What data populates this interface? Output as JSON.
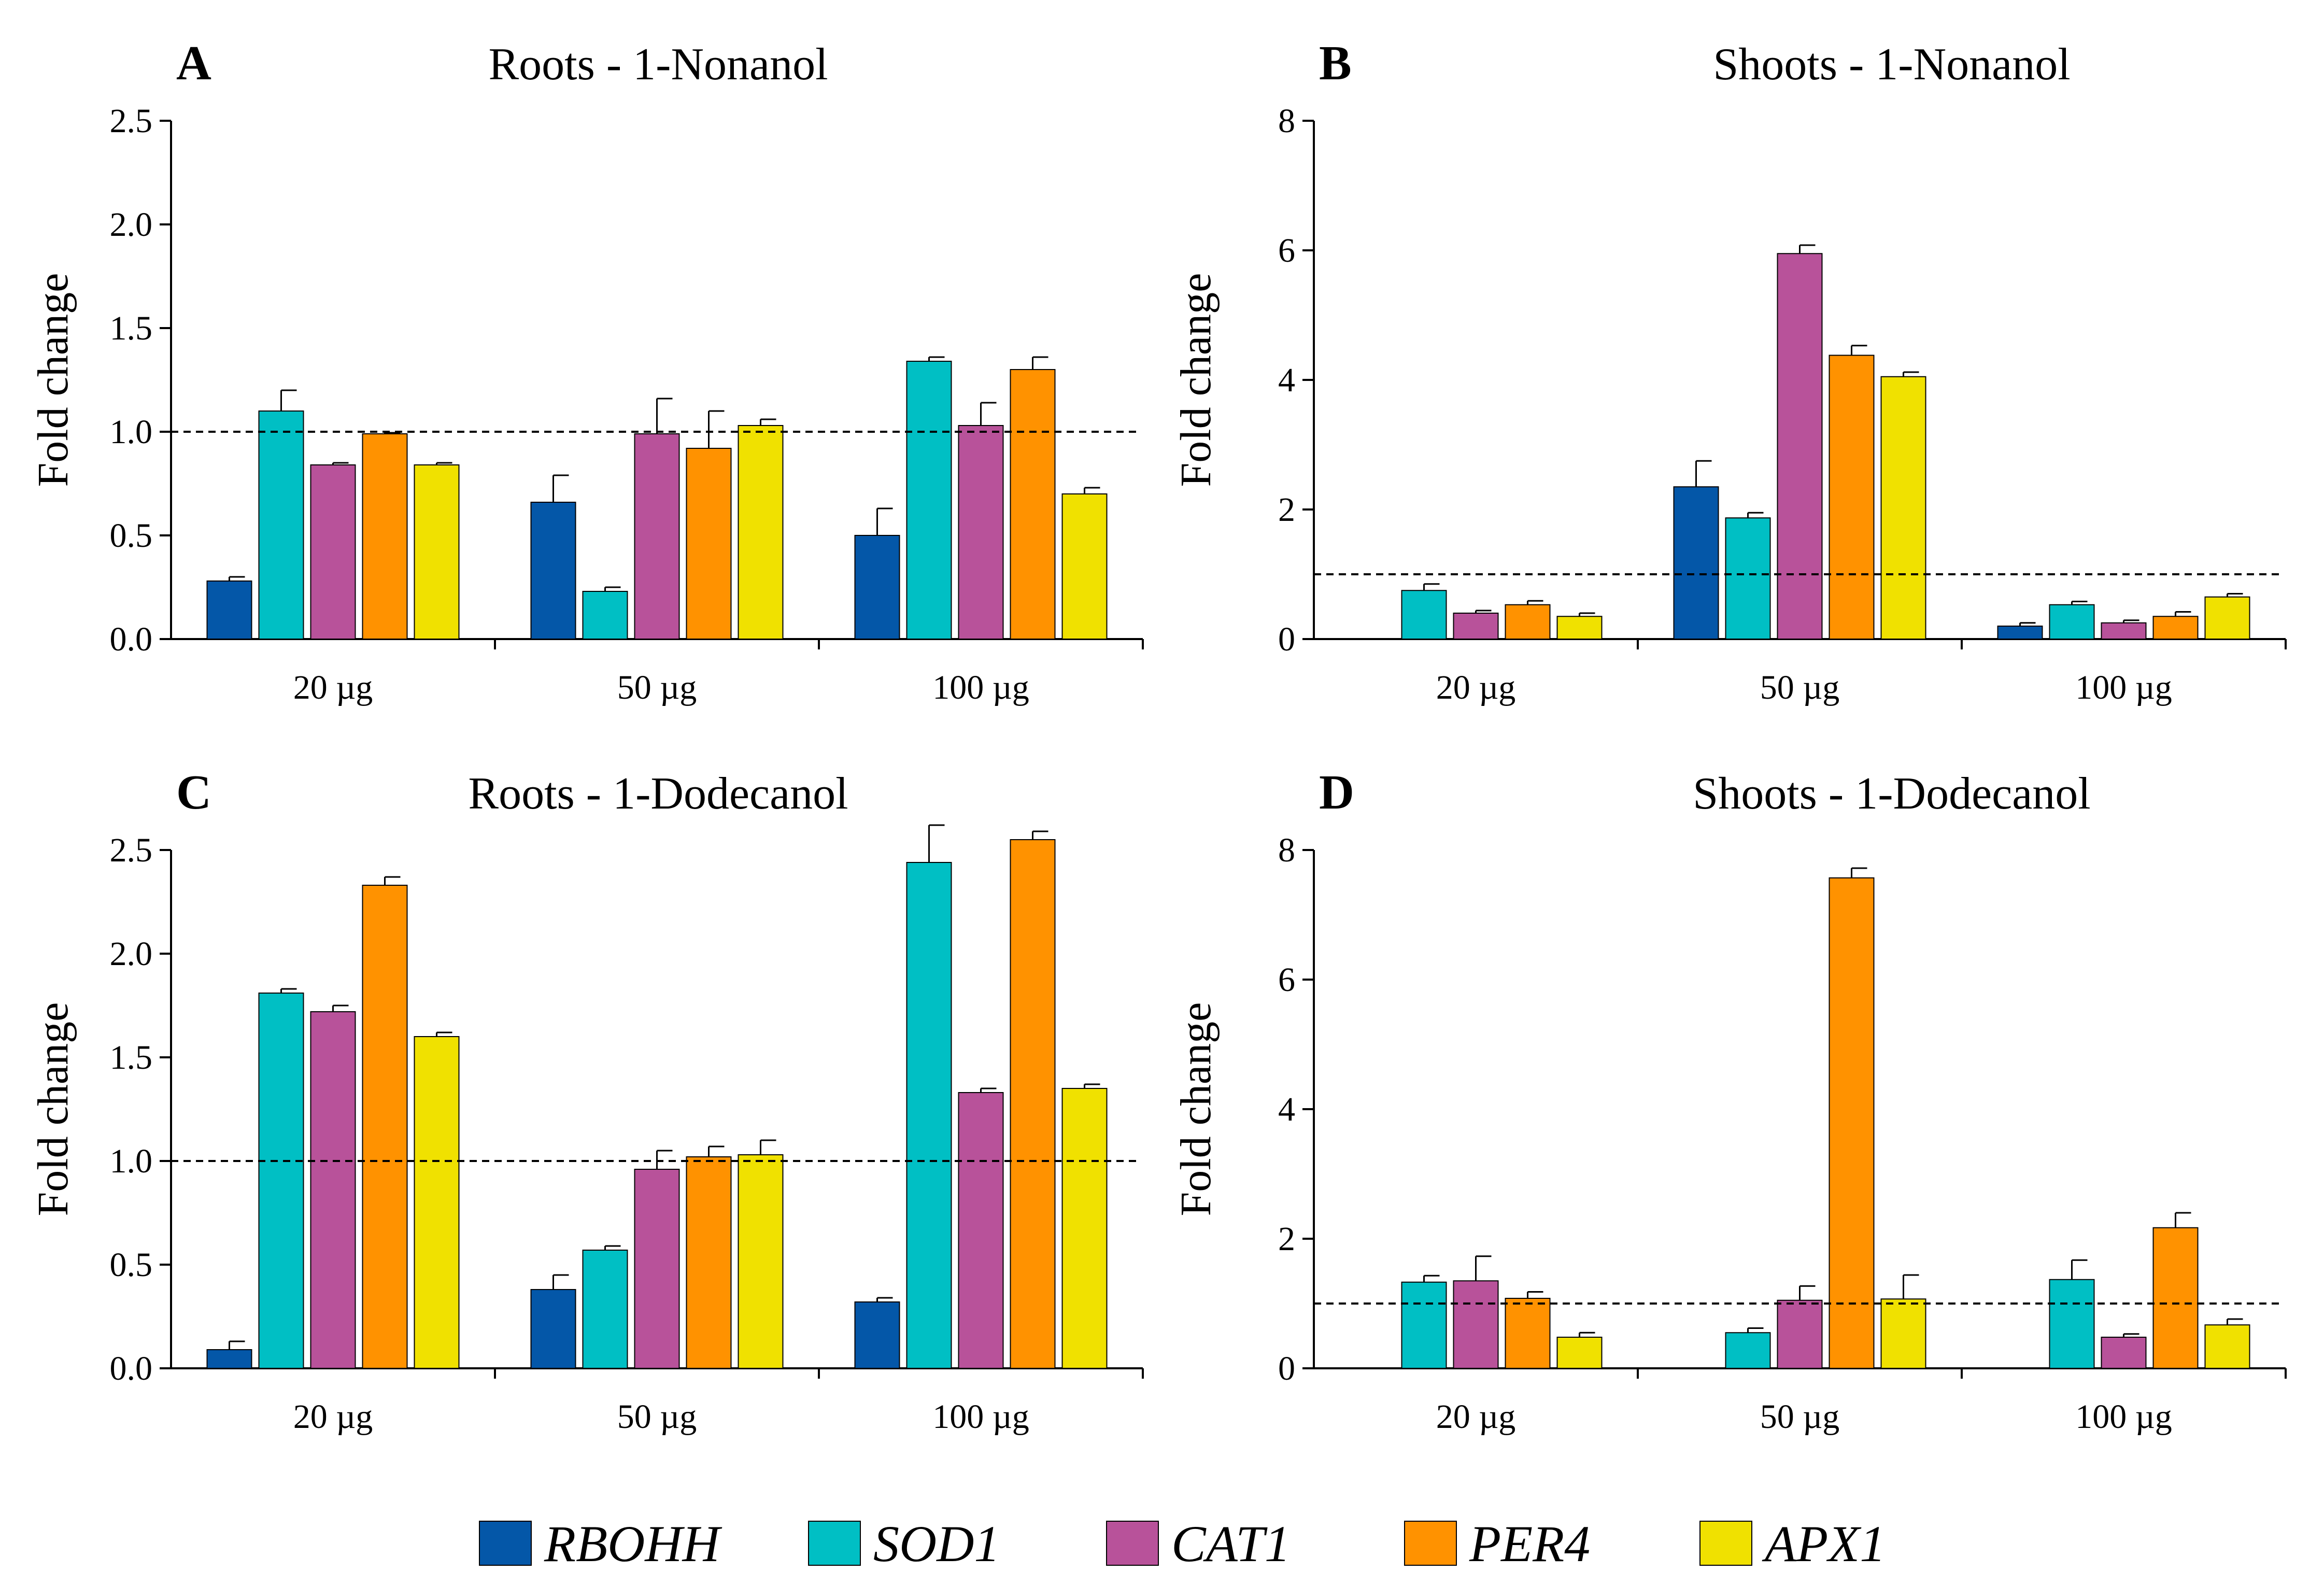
{
  "legend": [
    {
      "gene": "RBOHH",
      "color": "#0457a8"
    },
    {
      "gene": "SOD1",
      "color": "#00bfc4"
    },
    {
      "gene": "CAT1",
      "color": "#b8529a"
    },
    {
      "gene": "PER4",
      "color": "#ff9200"
    },
    {
      "gene": "APX1",
      "color": "#f0e100"
    }
  ],
  "chart_data": [
    {
      "type": "bar",
      "letter": "A",
      "title": "Roots - 1-Nonanol",
      "ylabel": "Fold change",
      "ylim": [
        0,
        2.5
      ],
      "yticks": [
        "0.0",
        "0.5",
        "1.0",
        "1.5",
        "2.0",
        "2.5"
      ],
      "reference_line": 1.0,
      "categories": [
        "20 µg",
        "50 µg",
        "100 µg"
      ],
      "series": [
        {
          "name": "RBOHH",
          "values": [
            0.28,
            0.66,
            0.5
          ],
          "errors": [
            0.02,
            0.13,
            0.13
          ]
        },
        {
          "name": "SOD1",
          "values": [
            1.1,
            0.23,
            1.34
          ],
          "errors": [
            0.1,
            0.02,
            0.02
          ]
        },
        {
          "name": "CAT1",
          "values": [
            0.84,
            0.99,
            1.03
          ],
          "errors": [
            0.01,
            0.17,
            0.11
          ]
        },
        {
          "name": "PER4",
          "values": [
            0.99,
            0.92,
            1.3
          ],
          "errors": [
            0.005,
            0.18,
            0.06
          ]
        },
        {
          "name": "APX1",
          "values": [
            0.84,
            1.03,
            0.7
          ],
          "errors": [
            0.01,
            0.03,
            0.03
          ]
        }
      ]
    },
    {
      "type": "bar",
      "letter": "B",
      "title": "Shoots - 1-Nonanol",
      "ylabel": "Fold change",
      "ylim": [
        0,
        8
      ],
      "yticks": [
        "0",
        "2",
        "4",
        "6",
        "8"
      ],
      "reference_line": 1.0,
      "categories": [
        "20 µg",
        "50 µg",
        "100 µg"
      ],
      "series": [
        {
          "name": "RBOHH",
          "values": [
            0.0,
            2.35,
            0.2
          ],
          "errors": [
            0.0,
            0.4,
            0.05
          ]
        },
        {
          "name": "SOD1",
          "values": [
            0.75,
            1.87,
            0.53
          ],
          "errors": [
            0.1,
            0.08,
            0.05
          ]
        },
        {
          "name": "CAT1",
          "values": [
            0.4,
            5.95,
            0.25
          ],
          "errors": [
            0.04,
            0.13,
            0.04
          ]
        },
        {
          "name": "PER4",
          "values": [
            0.53,
            4.38,
            0.35
          ],
          "errors": [
            0.06,
            0.15,
            0.07
          ]
        },
        {
          "name": "APX1",
          "values": [
            0.35,
            4.05,
            0.65
          ],
          "errors": [
            0.05,
            0.07,
            0.05
          ]
        }
      ]
    },
    {
      "type": "bar",
      "letter": "C",
      "title": "Roots - 1-Dodecanol",
      "ylabel": "Fold change",
      "ylim": [
        0,
        2.5
      ],
      "yticks": [
        "0.0",
        "0.5",
        "1.0",
        "1.5",
        "2.0",
        "2.5"
      ],
      "reference_line": 1.0,
      "categories": [
        "20 µg",
        "50 µg",
        "100 µg"
      ],
      "series": [
        {
          "name": "RBOHH",
          "values": [
            0.09,
            0.38,
            0.32
          ],
          "errors": [
            0.04,
            0.07,
            0.02
          ]
        },
        {
          "name": "SOD1",
          "values": [
            1.81,
            0.57,
            2.44
          ],
          "errors": [
            0.02,
            0.02,
            0.18
          ]
        },
        {
          "name": "CAT1",
          "values": [
            1.72,
            0.96,
            1.33
          ],
          "errors": [
            0.03,
            0.09,
            0.02
          ]
        },
        {
          "name": "PER4",
          "values": [
            2.33,
            1.02,
            2.55
          ],
          "errors": [
            0.04,
            0.05,
            0.04
          ]
        },
        {
          "name": "APX1",
          "values": [
            1.6,
            1.03,
            1.35
          ],
          "errors": [
            0.02,
            0.07,
            0.02
          ]
        }
      ]
    },
    {
      "type": "bar",
      "letter": "D",
      "title": "Shoots - 1-Dodecanol",
      "ylabel": "Fold change",
      "ylim": [
        0,
        8
      ],
      "yticks": [
        "0",
        "2",
        "4",
        "6",
        "8"
      ],
      "reference_line": 1.0,
      "categories": [
        "20 µg",
        "50 µg",
        "100 µg"
      ],
      "series": [
        {
          "name": "RBOHH",
          "values": [
            0.0,
            0.0,
            0.0
          ],
          "errors": [
            0.0,
            0.0,
            0.0
          ]
        },
        {
          "name": "SOD1",
          "values": [
            1.33,
            0.55,
            1.37
          ],
          "errors": [
            0.1,
            0.07,
            0.3
          ]
        },
        {
          "name": "CAT1",
          "values": [
            1.35,
            1.05,
            0.48
          ],
          "errors": [
            0.38,
            0.22,
            0.05
          ]
        },
        {
          "name": "PER4",
          "values": [
            1.08,
            7.57,
            2.17
          ],
          "errors": [
            0.1,
            0.15,
            0.23
          ]
        },
        {
          "name": "APX1",
          "values": [
            0.48,
            1.07,
            0.67
          ],
          "errors": [
            0.07,
            0.37,
            0.09
          ]
        }
      ]
    }
  ]
}
